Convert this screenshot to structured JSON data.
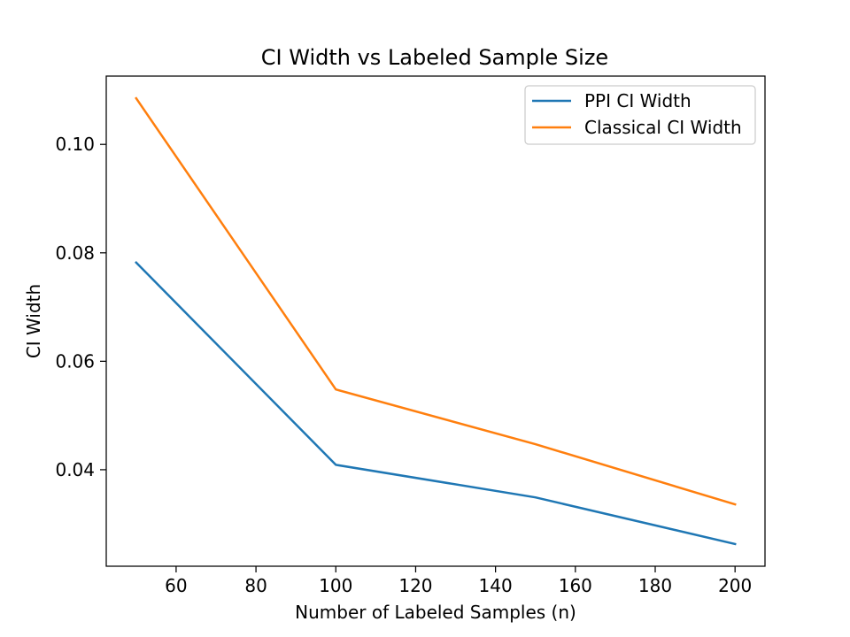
{
  "chart_data": {
    "type": "line",
    "title": "CI Width vs Labeled Sample Size",
    "xlabel": "Number of Labeled Samples (n)",
    "ylabel": "CI Width",
    "x": [
      50,
      100,
      150,
      200
    ],
    "series": [
      {
        "name": "PPI CI Width",
        "color": "#1f77b4",
        "values": [
          0.0782,
          0.0409,
          0.0349,
          0.0263
        ]
      },
      {
        "name": "Classical CI Width",
        "color": "#ff7f0e",
        "values": [
          0.1085,
          0.0548,
          0.0447,
          0.0336
        ]
      }
    ],
    "xlim": [
      42.5,
      207.5
    ],
    "ylim": [
      0.0222,
      0.1126
    ],
    "xticks": [
      60,
      80,
      100,
      120,
      140,
      160,
      180,
      200
    ],
    "xtick_labels": [
      "60",
      "80",
      "100",
      "120",
      "140",
      "160",
      "180",
      "200"
    ],
    "yticks": [
      0.04,
      0.06,
      0.08,
      0.1
    ],
    "ytick_labels": [
      "0.04",
      "0.06",
      "0.08",
      "0.10"
    ],
    "grid": false,
    "legend_position": "top-right"
  }
}
